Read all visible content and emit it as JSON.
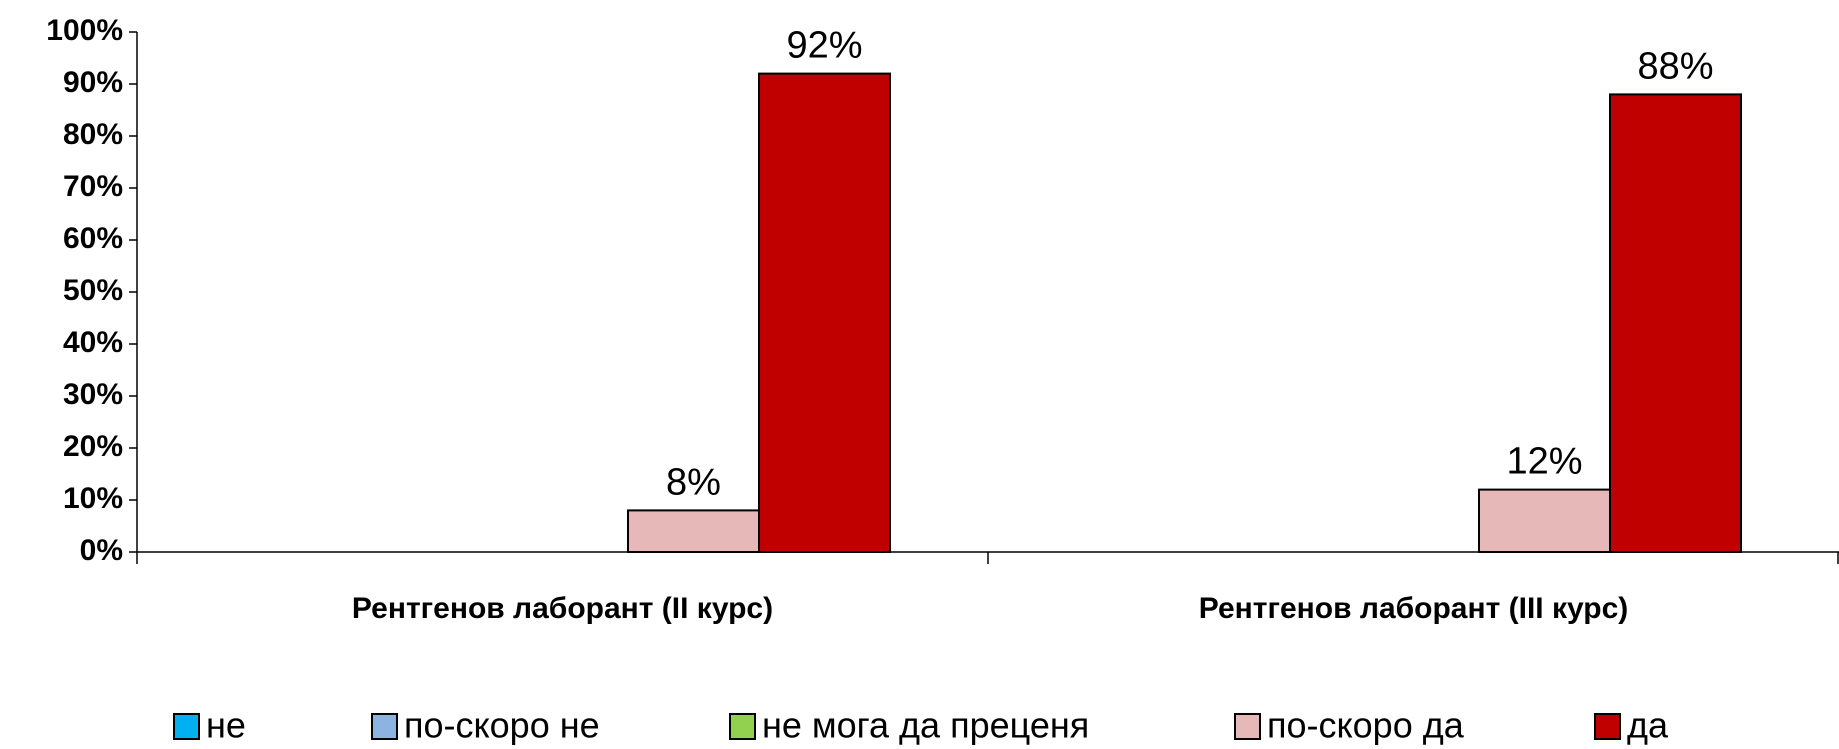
{
  "chart_data": {
    "type": "bar",
    "categories": [
      "Рентгенов лаборант (II курс)",
      "Рентгенов лаборант (III курс)"
    ],
    "series": [
      {
        "name": "не",
        "color": "#00b0f0",
        "values": [
          0,
          0
        ]
      },
      {
        "name": "по-скоро не",
        "color": "#8db3e2",
        "values": [
          0,
          0
        ]
      },
      {
        "name": "не мога да преценя",
        "color": "#92d050",
        "values": [
          0,
          0
        ]
      },
      {
        "name": "по-скоро да",
        "color": "#e6b9b8",
        "values": [
          8,
          12
        ],
        "value_labels": [
          "8%",
          "12%"
        ]
      },
      {
        "name": "да",
        "color": "#c00000",
        "values": [
          92,
          88
        ],
        "value_labels": [
          "92%",
          "88%"
        ]
      }
    ],
    "ylim": [
      0,
      100
    ],
    "yticks": [
      {
        "value": 0,
        "label": "0%"
      },
      {
        "value": 10,
        "label": "10%"
      },
      {
        "value": 20,
        "label": "20%"
      },
      {
        "value": 30,
        "label": "30%"
      },
      {
        "value": 40,
        "label": "40%"
      },
      {
        "value": 50,
        "label": "50%"
      },
      {
        "value": 60,
        "label": "60%"
      },
      {
        "value": 70,
        "label": "70%"
      },
      {
        "value": 80,
        "label": "80%"
      },
      {
        "value": 90,
        "label": "90%"
      },
      {
        "value": 100,
        "label": "100%"
      }
    ],
    "grid": false,
    "legend": "bottom"
  }
}
